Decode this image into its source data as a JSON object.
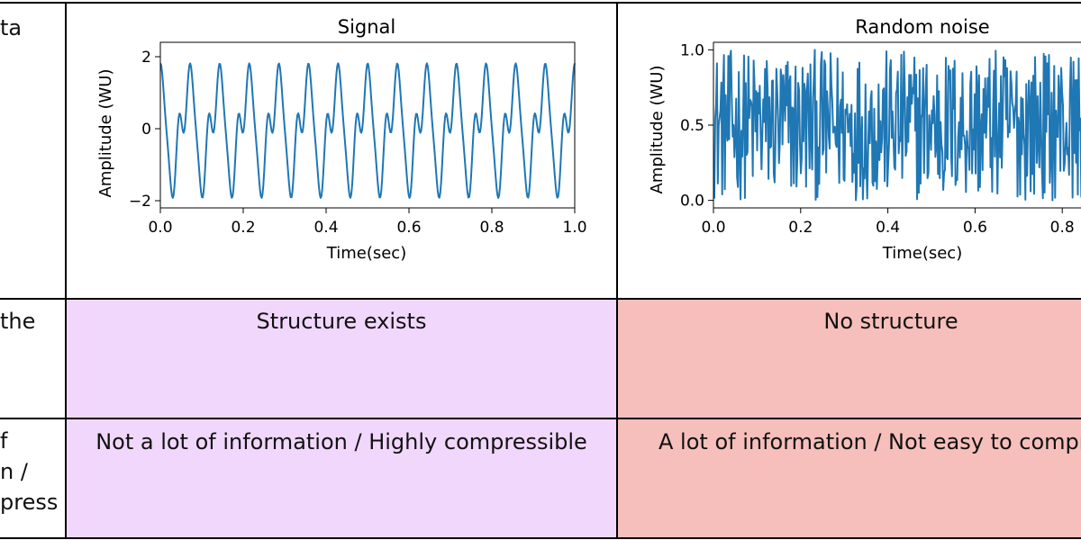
{
  "rows": [
    {
      "label": "ta"
    },
    {
      "label": "the"
    },
    {
      "label": "f\nn /\npress"
    }
  ],
  "cells": {
    "signal_text": "Structure exists",
    "noise_text": "No structure",
    "signal_info": "Not a lot of information / Highly compressible",
    "noise_info": "A lot of information / Not easy to compr"
  },
  "colors": {
    "signal_bg": "#f1d7fc",
    "noise_bg": "#f6bfbb",
    "line": "#1f77b4"
  },
  "chart_data": [
    {
      "type": "line",
      "title": "Signal",
      "xlabel": "Time(sec)",
      "ylabel": "Amplitude (WU)",
      "xlim": [
        0.0,
        1.0
      ],
      "ylim": [
        -2.2,
        2.4
      ],
      "xticks": [
        "0.0",
        "0.2",
        "0.4",
        "0.6",
        "0.8",
        "1.0"
      ],
      "yticks": [
        "2",
        "0",
        "−2"
      ],
      "xtick_values": [
        0.0,
        0.2,
        0.4,
        0.6,
        0.8,
        1.0
      ],
      "ytick_values": [
        2,
        0,
        -2
      ],
      "series": [
        {
          "x_start": 0.0,
          "x_end": 1.0,
          "n_points": 500,
          "values_description": "periodic signal with dominant ~14 Hz cycle, peaks ≈2.3, troughs ≈-1.9"
        }
      ]
    },
    {
      "type": "line",
      "title": "Random noise",
      "xlabel": "Time(sec)",
      "ylabel": "Amplitude (WU)",
      "xlim": [
        0.0,
        1.0
      ],
      "ylim": [
        -0.05,
        1.05
      ],
      "xticks": [
        "0.0",
        "0.2",
        "0.4",
        "0.6",
        "0.8"
      ],
      "yticks": [
        "1.0",
        "0.5",
        "0.0"
      ],
      "xtick_values": [
        0.0,
        0.2,
        0.4,
        0.6,
        0.8
      ],
      "ytick_values": [
        1.0,
        0.5,
        0.0
      ],
      "series": [
        {
          "x_start": 0.0,
          "x_end": 1.0,
          "n_points": 500,
          "values_description": "uniform random noise between 0 and 1"
        }
      ]
    }
  ]
}
